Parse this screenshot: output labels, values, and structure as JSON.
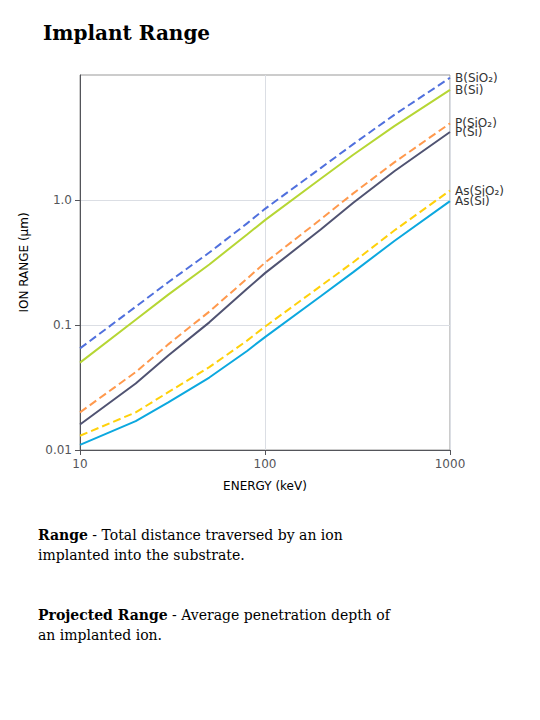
{
  "chart_data": {
    "type": "line",
    "title": "Implant Range",
    "xlabel": "ENERGY (keV)",
    "ylabel": "ION RANGE (μm)",
    "log": true,
    "grid": true,
    "xlim": [
      10,
      1000
    ],
    "ylim": [
      0.01,
      10
    ],
    "xticks": [
      10,
      100,
      1000
    ],
    "yticks": [
      0.01,
      0.1,
      {
        "value": 1.0,
        "label": "1.0"
      }
    ],
    "x": [
      10,
      20,
      30,
      50,
      80,
      100,
      200,
      300,
      500,
      1000
    ],
    "series": [
      {
        "name": "B(SiO₂)",
        "line_style": "dashed",
        "values": [
          0.065,
          0.14,
          0.22,
          0.38,
          0.65,
          0.85,
          1.8,
          2.8,
          4.8,
          9.5
        ]
      },
      {
        "name": "B(Si)",
        "line_style": "solid",
        "values": [
          0.05,
          0.11,
          0.175,
          0.305,
          0.53,
          0.69,
          1.48,
          2.3,
          3.9,
          7.6
        ]
      },
      {
        "name": "P(Si)",
        "line_style": "solid",
        "values": [
          0.016,
          0.034,
          0.057,
          0.105,
          0.195,
          0.26,
          0.58,
          0.95,
          1.7,
          3.5
        ]
      },
      {
        "name": "P(SiO₂)",
        "line_style": "dashed",
        "values": [
          0.02,
          0.042,
          0.07,
          0.128,
          0.235,
          0.315,
          0.7,
          1.13,
          2.0,
          4.1
        ]
      },
      {
        "name": "As(Si)",
        "line_style": "solid",
        "values": [
          0.011,
          0.017,
          0.024,
          0.038,
          0.062,
          0.08,
          0.17,
          0.265,
          0.47,
          0.98
        ]
      },
      {
        "name": "As(SiO₂)",
        "line_style": "dashed",
        "values": [
          0.013,
          0.02,
          0.029,
          0.046,
          0.075,
          0.097,
          0.205,
          0.318,
          0.57,
          1.19
        ]
      }
    ],
    "annotations": [
      {
        "term": "Range",
        "text": "- Total distance traversed by an ion\nimplanted into the substrate."
      },
      {
        "term": "Projected Range",
        "text": "- Average penetration depth of\nan implanted ion."
      }
    ]
  }
}
